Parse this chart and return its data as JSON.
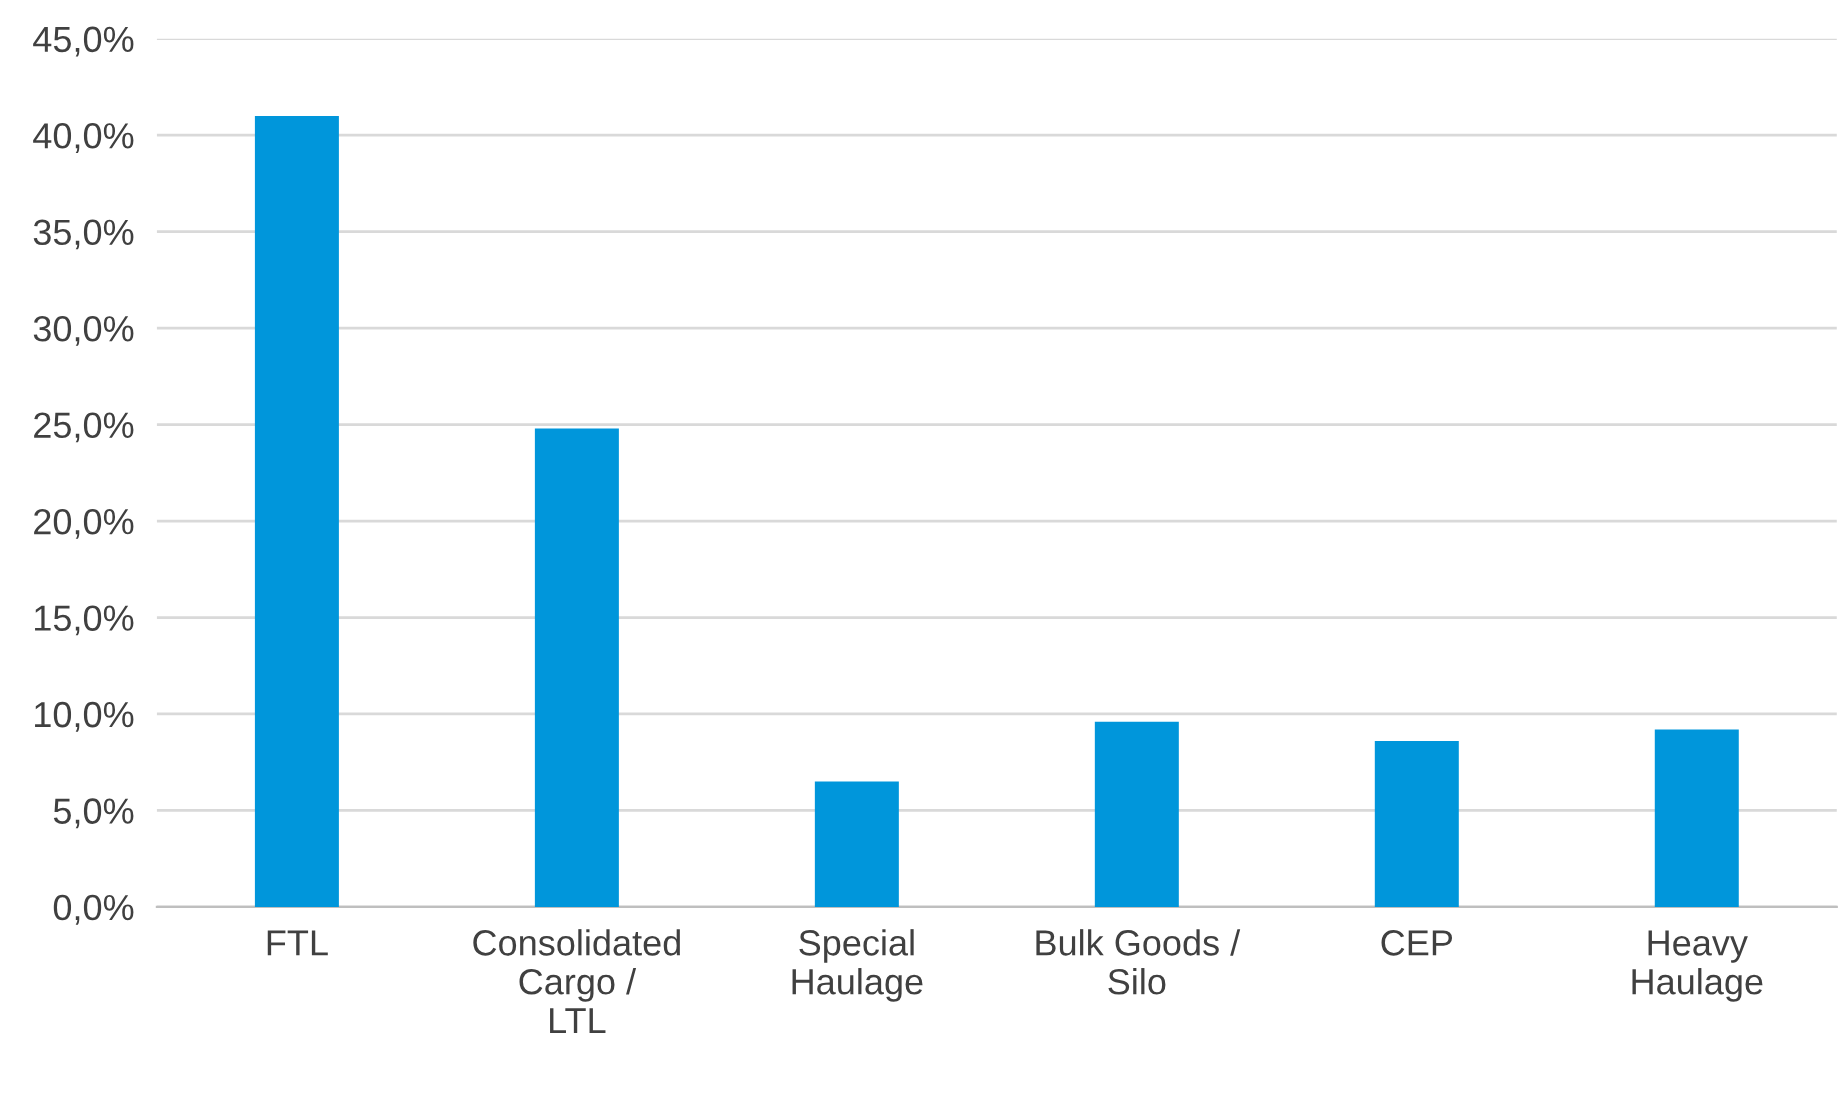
{
  "chart_data": {
    "type": "bar",
    "categories": [
      "FTL",
      "Consolidated\nCargo /\nLTL",
      "Special\nHaulage",
      "Bulk Goods /\nSilo",
      "CEP",
      "Heavy\nHaulage"
    ],
    "values": [
      41.0,
      24.8,
      6.5,
      9.6,
      8.6,
      9.2
    ],
    "color": "#0096db",
    "ylim": [
      0,
      45
    ],
    "yticks": [
      {
        "value": 0,
        "label": "0,0%"
      },
      {
        "value": 5,
        "label": "5,0%"
      },
      {
        "value": 10,
        "label": "10,0%"
      },
      {
        "value": 15,
        "label": "15,0%"
      },
      {
        "value": 20,
        "label": "20,0%"
      },
      {
        "value": 25,
        "label": "25,0%"
      },
      {
        "value": 30,
        "label": "30,0%"
      },
      {
        "value": 35,
        "label": "35,0%"
      },
      {
        "value": 40,
        "label": "40,0%"
      },
      {
        "value": 45,
        "label": "45,0%"
      }
    ],
    "grid": "y"
  }
}
